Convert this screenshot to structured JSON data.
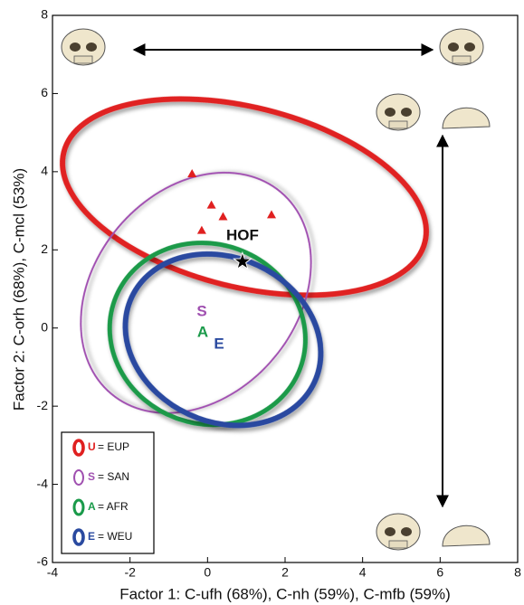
{
  "chart_data": {
    "type": "scatter",
    "xlabel": "Factor 1: C-ufh (68%), C-nh (59%), C-mfb (59%)",
    "ylabel": "Factor 2: C-orh (68%), C-mcl (53%)",
    "xlim": [
      -4,
      8
    ],
    "xticks": [
      -4,
      -2,
      0,
      2,
      4,
      6,
      8
    ],
    "ylim": [
      -6,
      8
    ],
    "yticks": [
      -6,
      -4,
      -2,
      0,
      2,
      4,
      6,
      8
    ],
    "ellipses": [
      {
        "letter": "U",
        "label": "= EUP",
        "color": "#e02020",
        "width": 6,
        "center": [
          0.95,
          3.35
        ],
        "radii": [
          4.8,
          2.3
        ],
        "angle": -14
      },
      {
        "letter": "S",
        "label": "= SAN",
        "color": "#a050b0",
        "width": 2,
        "center": [
          -0.3,
          0.9
        ],
        "radii": [
          3.4,
          2.6
        ],
        "angle": 50
      },
      {
        "letter": "A",
        "label": "= AFR",
        "color": "#1a9a4a",
        "width": 5,
        "center": [
          0.0,
          -0.15
        ],
        "radii": [
          2.55,
          2.3
        ],
        "angle": -20
      },
      {
        "letter": "E",
        "label": "= WEU",
        "color": "#2a4aa0",
        "width": 6,
        "center": [
          0.4,
          -0.3
        ],
        "radii": [
          2.6,
          2.1
        ],
        "angle": -25
      }
    ],
    "points": {
      "color": "#e02020",
      "x": [
        -0.4,
        0.1,
        0.4,
        1.65,
        -0.15
      ],
      "y": [
        3.95,
        3.15,
        2.85,
        2.9,
        2.5
      ]
    },
    "star": {
      "label": "HOF",
      "x": 0.9,
      "y": 1.7
    }
  }
}
